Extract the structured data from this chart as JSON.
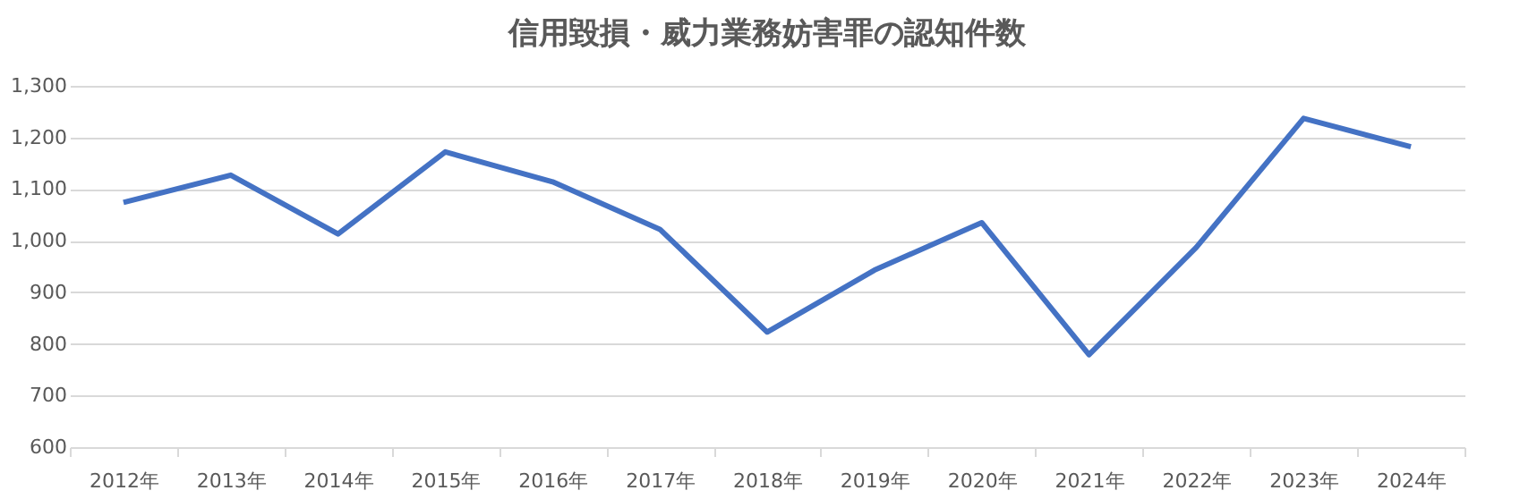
{
  "chart_data": {
    "type": "line",
    "title": "信用毀損・威力業務妨害罪の認知件数",
    "categories": [
      "2012年",
      "2013年",
      "2014年",
      "2015年",
      "2016年",
      "2017年",
      "2018年",
      "2019年",
      "2020年",
      "2021年",
      "2022年",
      "2023年",
      "2024年"
    ],
    "series": [
      {
        "color": "#4472c4",
        "values": [
          1074,
          1127,
          1013,
          1172,
          1114,
          1022,
          823,
          943,
          1035,
          779,
          987,
          1237,
          1182
        ]
      }
    ],
    "ylim": [
      600,
      1300
    ],
    "yticks": [
      {
        "value": 600,
        "label": "600"
      },
      {
        "value": 700,
        "label": "700"
      },
      {
        "value": 800,
        "label": "800"
      },
      {
        "value": 900,
        "label": "900"
      },
      {
        "value": 1000,
        "label": "1,000"
      },
      {
        "value": 1100,
        "label": "1,100"
      },
      {
        "value": 1200,
        "label": "1,200"
      },
      {
        "value": 1300,
        "label": "1,300"
      }
    ],
    "grid": "y",
    "marker": "none",
    "line_style": "solid"
  }
}
